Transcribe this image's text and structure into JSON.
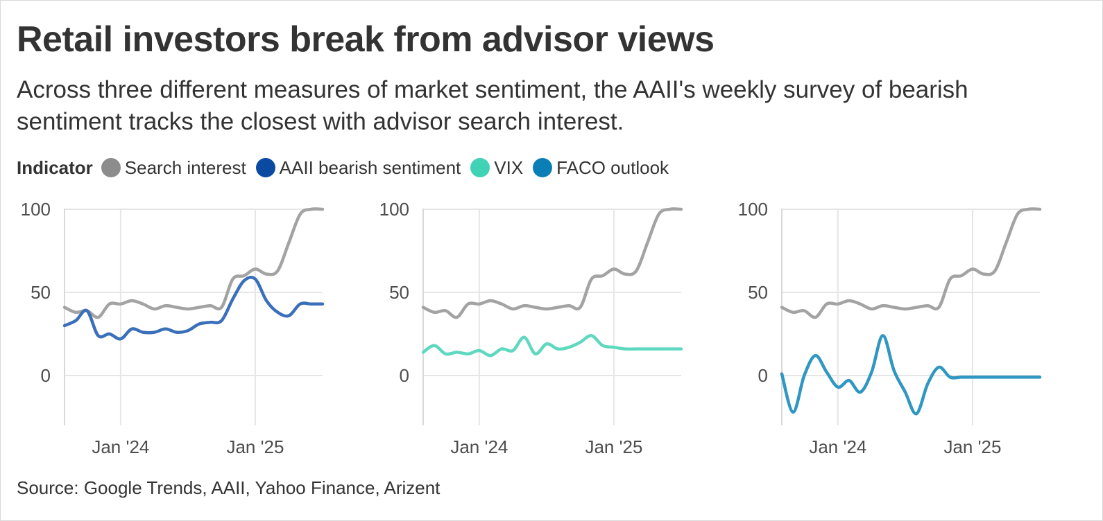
{
  "title": "Retail investors break from advisor views",
  "subtitle": "Across three different measures of market sentiment, the AAII's weekly survey of bearish sentiment tracks the closest with advisor search interest.",
  "legend": {
    "title": "Indicator",
    "items": [
      {
        "label": "Search interest",
        "color": "#8c8c8c"
      },
      {
        "label": "AAII bearish sentiment",
        "color": "#0a4aa0"
      },
      {
        "label": "VIX",
        "color": "#3fd2b4"
      },
      {
        "label": "FACO outlook",
        "color": "#0b7fb5"
      }
    ]
  },
  "source": "Source: Google Trends, AAII, Yahoo Finance, Arizent",
  "chart_data": [
    {
      "type": "line",
      "x": [
        "2023-08",
        "2023-09",
        "2023-10",
        "2023-11",
        "2023-12",
        "2024-01",
        "2024-02",
        "2024-03",
        "2024-04",
        "2024-05",
        "2024-06",
        "2024-07",
        "2024-08",
        "2024-09",
        "2024-10",
        "2024-11",
        "2024-12",
        "2025-01",
        "2025-02",
        "2025-03",
        "2025-04",
        "2025-05",
        "2025-06",
        "2025-07"
      ],
      "x_ticks": [
        "Jan '24",
        "Jan '25"
      ],
      "y_ticks": [
        0,
        50,
        100
      ],
      "ylim": [
        -30,
        100
      ],
      "series": [
        {
          "name": "Search interest",
          "color": "#a3a3a3",
          "values": [
            41,
            38,
            39,
            35,
            43,
            43,
            45,
            43,
            40,
            42,
            41,
            40,
            41,
            42,
            41,
            58,
            60,
            64,
            61,
            63,
            80,
            97,
            100,
            100
          ]
        },
        {
          "name": "AAII bearish sentiment",
          "color": "#3a6fba",
          "values": [
            30,
            33,
            39,
            24,
            25,
            22,
            28,
            26,
            26,
            28,
            26,
            27,
            31,
            32,
            33,
            46,
            57,
            58,
            45,
            38,
            36,
            43,
            43,
            43
          ]
        }
      ]
    },
    {
      "type": "line",
      "x": [
        "2023-08",
        "2023-09",
        "2023-10",
        "2023-11",
        "2023-12",
        "2024-01",
        "2024-02",
        "2024-03",
        "2024-04",
        "2024-05",
        "2024-06",
        "2024-07",
        "2024-08",
        "2024-09",
        "2024-10",
        "2024-11",
        "2024-12",
        "2025-01",
        "2025-02",
        "2025-03",
        "2025-04",
        "2025-05",
        "2025-06",
        "2025-07"
      ],
      "x_ticks": [
        "Jan '24",
        "Jan '25"
      ],
      "y_ticks": [
        0,
        50,
        100
      ],
      "ylim": [
        -30,
        100
      ],
      "series": [
        {
          "name": "Search interest",
          "color": "#a3a3a3",
          "values": [
            41,
            38,
            39,
            35,
            43,
            43,
            45,
            43,
            40,
            42,
            41,
            40,
            41,
            42,
            41,
            58,
            60,
            64,
            61,
            63,
            80,
            97,
            100,
            100
          ]
        },
        {
          "name": "VIX",
          "color": "#5fd8c0",
          "values": [
            14,
            18,
            13,
            14,
            13,
            15,
            12,
            16,
            15,
            23,
            13,
            19,
            16,
            17,
            20,
            24,
            18,
            17,
            16,
            16,
            16,
            16,
            16,
            16
          ]
        }
      ]
    },
    {
      "type": "line",
      "x": [
        "2023-08",
        "2023-09",
        "2023-10",
        "2023-11",
        "2023-12",
        "2024-01",
        "2024-02",
        "2024-03",
        "2024-04",
        "2024-05",
        "2024-06",
        "2024-07",
        "2024-08",
        "2024-09",
        "2024-10",
        "2024-11",
        "2024-12",
        "2025-01",
        "2025-02",
        "2025-03",
        "2025-04",
        "2025-05",
        "2025-06",
        "2025-07"
      ],
      "x_ticks": [
        "Jan '24",
        "Jan '25"
      ],
      "y_ticks": [
        0,
        50,
        100
      ],
      "ylim": [
        -30,
        100
      ],
      "series": [
        {
          "name": "Search interest",
          "color": "#a3a3a3",
          "values": [
            41,
            38,
            39,
            35,
            43,
            43,
            45,
            43,
            40,
            42,
            41,
            40,
            41,
            42,
            41,
            58,
            60,
            64,
            61,
            63,
            80,
            97,
            100,
            100
          ]
        },
        {
          "name": "FACO outlook",
          "color": "#2f97c1",
          "values": [
            1,
            -22,
            0,
            12,
            2,
            -7,
            -3,
            -10,
            2,
            24,
            3,
            -10,
            -23,
            -5,
            5,
            -1,
            -1,
            -1,
            -1,
            -1,
            -1,
            -1,
            -1,
            -1
          ]
        }
      ]
    }
  ]
}
